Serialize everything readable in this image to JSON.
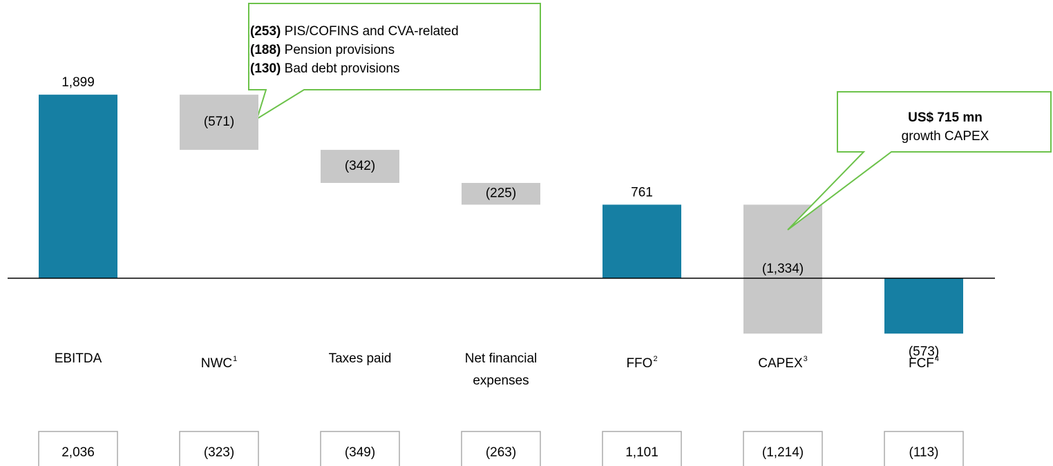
{
  "chart_data": {
    "type": "waterfall",
    "categories": [
      "EBITDA",
      "NWC",
      "Taxes paid",
      "Net financial expenses",
      "FFO",
      "CAPEX",
      "FCF"
    ],
    "footnotes": [
      null,
      "1",
      null,
      null,
      "2",
      "3",
      "4"
    ],
    "values": [
      1899,
      -571,
      -342,
      -225,
      761,
      -1334,
      -573
    ],
    "value_labels": [
      "1,899",
      "(571)",
      "(342)",
      "(225)",
      "761",
      "(1,334)",
      "(573)"
    ],
    "totals": [
      true,
      false,
      false,
      false,
      true,
      false,
      true
    ],
    "total_color": "#167fa3",
    "change_color": "#c8c8c8",
    "prior_values": [
      2036,
      -323,
      -349,
      -263,
      1101,
      -1214,
      -113
    ],
    "prior_value_labels": [
      "2,036",
      "(323)",
      "(349)",
      "(263)",
      "1,101",
      "(1,214)",
      "(113)"
    ],
    "annotations": [
      {
        "lines": [
          {
            "bold": "(253)",
            "text": "PIS/COFINS and CVA-related"
          },
          {
            "bold": "(188)",
            "text": "Pension provisions"
          },
          {
            "bold": "(130)",
            "text": "Bad debt provisions"
          }
        ]
      },
      {
        "bold": "US$ 715 mn",
        "text": "growth CAPEX"
      }
    ],
    "annotation_color": "#6cc24a"
  }
}
